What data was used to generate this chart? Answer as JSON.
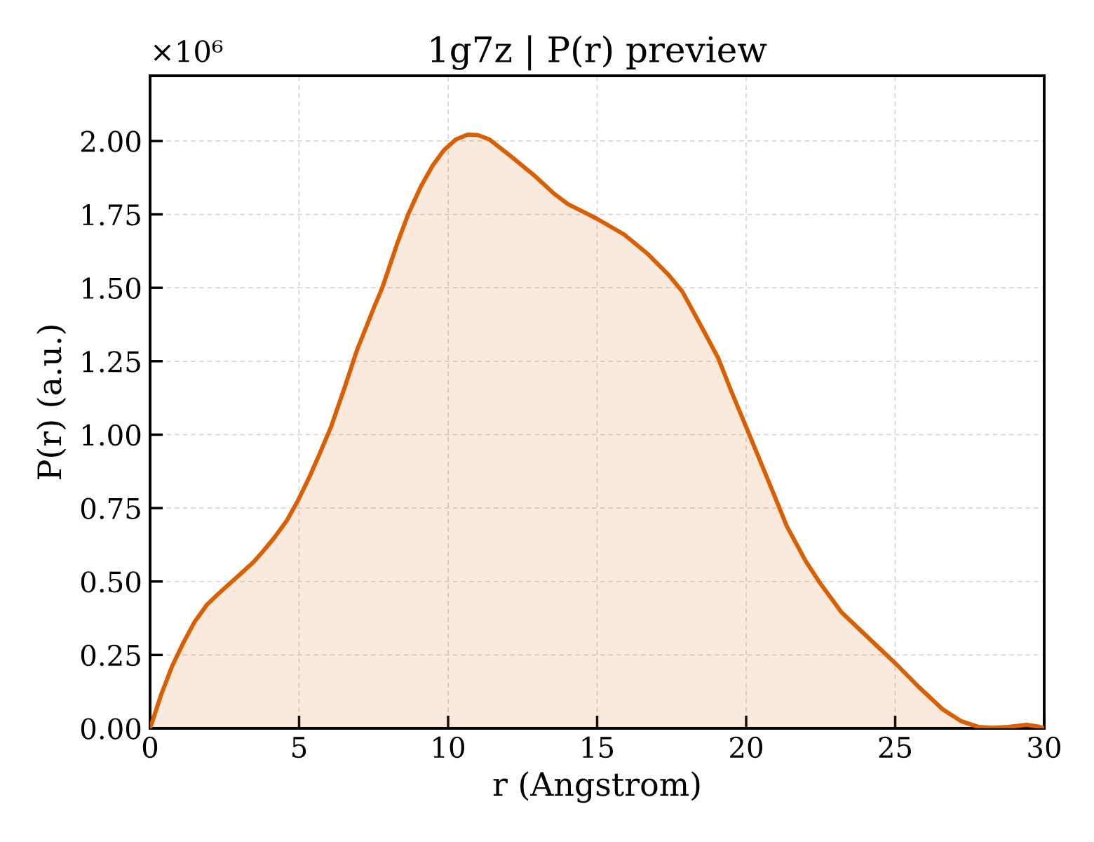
{
  "chart_data": {
    "type": "area",
    "title": "1g7z | P(r) preview",
    "xlabel": "r (Angstrom)",
    "ylabel": "P(r) (a.u.)",
    "annotations": [
      "×10⁶"
    ],
    "x": [
      0,
      0.38,
      0.75,
      1.11,
      1.48,
      1.9,
      2.3,
      2.96,
      3.46,
      3.79,
      4.16,
      4.59,
      4.96,
      5.36,
      5.69,
      6.07,
      6.52,
      6.94,
      7.5,
      7.79,
      8.3,
      8.66,
      9.08,
      9.48,
      9.86,
      10.26,
      10.66,
      11.0,
      11.39,
      12.14,
      12.92,
      13.55,
      14.02,
      14.96,
      15.9,
      16.68,
      17.39,
      17.86,
      18.61,
      19.06,
      19.5,
      20.02,
      20.99,
      21.36,
      22.0,
      22.45,
      23.2,
      24.02,
      25.04,
      25.79,
      26.59,
      27.22,
      27.79,
      28.26,
      28.8,
      29.41,
      29.81,
      30
    ],
    "values": [
      0,
      0.117,
      0.214,
      0.29,
      0.36,
      0.42,
      0.459,
      0.519,
      0.565,
      0.603,
      0.648,
      0.708,
      0.775,
      0.859,
      0.935,
      1.026,
      1.158,
      1.287,
      1.43,
      1.5,
      1.653,
      1.75,
      1.844,
      1.916,
      1.969,
      2.005,
      2.022,
      2.02,
      2.005,
      1.945,
      1.88,
      1.821,
      1.785,
      1.737,
      1.682,
      1.617,
      1.545,
      1.487,
      1.347,
      1.261,
      1.148,
      1.021,
      0.782,
      0.689,
      0.569,
      0.499,
      0.395,
      0.316,
      0.218,
      0.141,
      0.065,
      0.024,
      0.005,
      0.002,
      0.005,
      0.012,
      0.006,
      0
    ],
    "color": "#d95f02",
    "xlim": [
      0,
      30
    ],
    "ylim": [
      0,
      2.222
    ],
    "xticks": [
      0,
      5,
      10,
      15,
      20,
      25,
      30
    ],
    "yticks": [
      {
        "value": 0,
        "label": "0.00"
      },
      0.25,
      {
        "value": 0.5,
        "label": "0.50"
      },
      0.75,
      {
        "value": 1,
        "label": "1.00"
      },
      1.25,
      {
        "value": 1.5,
        "label": "1.50"
      },
      1.75,
      {
        "value": 2,
        "label": "2.00"
      }
    ],
    "grid": true
  }
}
